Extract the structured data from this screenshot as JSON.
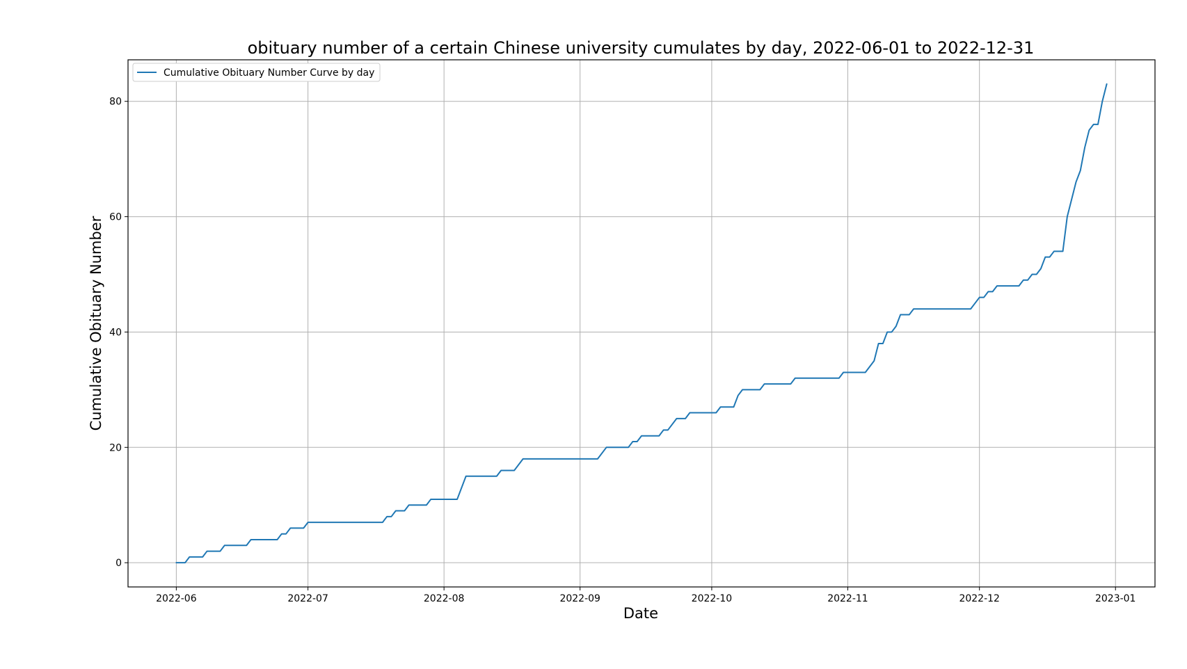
{
  "chart_data": {
    "type": "line",
    "title": "obituary number of a certain Chinese university cumulates by day, 2022-06-01 to 2022-12-31",
    "xlabel": "Date",
    "ylabel": "Cumulative Obituary Number",
    "xlim": [
      "2022-05-21",
      "2023-01-10"
    ],
    "ylim": [
      -4.2,
      87.2
    ],
    "xticks": [
      "2022-06-01",
      "2022-07-01",
      "2022-08-01",
      "2022-09-01",
      "2022-10-01",
      "2022-11-01",
      "2022-12-01",
      "2023-01-01"
    ],
    "xtick_labels": [
      "2022-06",
      "2022-07",
      "2022-08",
      "2022-09",
      "2022-10",
      "2022-11",
      "2022-12",
      "2023-01"
    ],
    "yticks": [
      0,
      20,
      40,
      60,
      80
    ],
    "grid": true,
    "legend_position": "upper left",
    "color": "#1f77b4",
    "series": [
      {
        "name": "Cumulative Obituary Number Curve by day",
        "color": "#1f77b4",
        "points": [
          [
            "2022-06-01",
            0
          ],
          [
            "2022-06-03",
            0
          ],
          [
            "2022-06-04",
            1
          ],
          [
            "2022-06-07",
            1
          ],
          [
            "2022-06-08",
            2
          ],
          [
            "2022-06-11",
            2
          ],
          [
            "2022-06-12",
            3
          ],
          [
            "2022-06-17",
            3
          ],
          [
            "2022-06-18",
            4
          ],
          [
            "2022-06-24",
            4
          ],
          [
            "2022-06-25",
            5
          ],
          [
            "2022-06-26",
            5
          ],
          [
            "2022-06-27",
            6
          ],
          [
            "2022-06-30",
            6
          ],
          [
            "2022-07-01",
            7
          ],
          [
            "2022-07-18",
            7
          ],
          [
            "2022-07-19",
            8
          ],
          [
            "2022-07-20",
            8
          ],
          [
            "2022-07-21",
            9
          ],
          [
            "2022-07-23",
            9
          ],
          [
            "2022-07-24",
            10
          ],
          [
            "2022-07-28",
            10
          ],
          [
            "2022-07-29",
            11
          ],
          [
            "2022-08-04",
            11
          ],
          [
            "2022-08-06",
            15
          ],
          [
            "2022-08-13",
            15
          ],
          [
            "2022-08-14",
            16
          ],
          [
            "2022-08-17",
            16
          ],
          [
            "2022-08-19",
            18
          ],
          [
            "2022-09-05",
            18
          ],
          [
            "2022-09-07",
            20
          ],
          [
            "2022-09-12",
            20
          ],
          [
            "2022-09-13",
            21
          ],
          [
            "2022-09-14",
            21
          ],
          [
            "2022-09-15",
            22
          ],
          [
            "2022-09-19",
            22
          ],
          [
            "2022-09-20",
            23
          ],
          [
            "2022-09-21",
            23
          ],
          [
            "2022-09-23",
            25
          ],
          [
            "2022-09-25",
            25
          ],
          [
            "2022-09-26",
            26
          ],
          [
            "2022-10-02",
            26
          ],
          [
            "2022-10-03",
            27
          ],
          [
            "2022-10-06",
            27
          ],
          [
            "2022-10-07",
            29
          ],
          [
            "2022-10-08",
            30
          ],
          [
            "2022-10-12",
            30
          ],
          [
            "2022-10-13",
            31
          ],
          [
            "2022-10-19",
            31
          ],
          [
            "2022-10-20",
            32
          ],
          [
            "2022-10-30",
            32
          ],
          [
            "2022-10-31",
            33
          ],
          [
            "2022-11-05",
            33
          ],
          [
            "2022-11-07",
            35
          ],
          [
            "2022-11-08",
            38
          ],
          [
            "2022-11-09",
            38
          ],
          [
            "2022-11-10",
            40
          ],
          [
            "2022-11-11",
            40
          ],
          [
            "2022-11-12",
            41
          ],
          [
            "2022-11-13",
            43
          ],
          [
            "2022-11-15",
            43
          ],
          [
            "2022-11-16",
            44
          ],
          [
            "2022-11-29",
            44
          ],
          [
            "2022-12-01",
            46
          ],
          [
            "2022-12-02",
            46
          ],
          [
            "2022-12-03",
            47
          ],
          [
            "2022-12-04",
            47
          ],
          [
            "2022-12-05",
            48
          ],
          [
            "2022-12-10",
            48
          ],
          [
            "2022-12-11",
            49
          ],
          [
            "2022-12-12",
            49
          ],
          [
            "2022-12-13",
            50
          ],
          [
            "2022-12-14",
            50
          ],
          [
            "2022-12-15",
            51
          ],
          [
            "2022-12-16",
            53
          ],
          [
            "2022-12-17",
            53
          ],
          [
            "2022-12-18",
            54
          ],
          [
            "2022-12-20",
            54
          ],
          [
            "2022-12-21",
            60
          ],
          [
            "2022-12-22",
            63
          ],
          [
            "2022-12-23",
            66
          ],
          [
            "2022-12-24",
            68
          ],
          [
            "2022-12-25",
            72
          ],
          [
            "2022-12-26",
            75
          ],
          [
            "2022-12-27",
            76
          ],
          [
            "2022-12-28",
            76
          ],
          [
            "2022-12-29",
            80
          ],
          [
            "2022-12-30",
            83
          ]
        ]
      }
    ]
  }
}
